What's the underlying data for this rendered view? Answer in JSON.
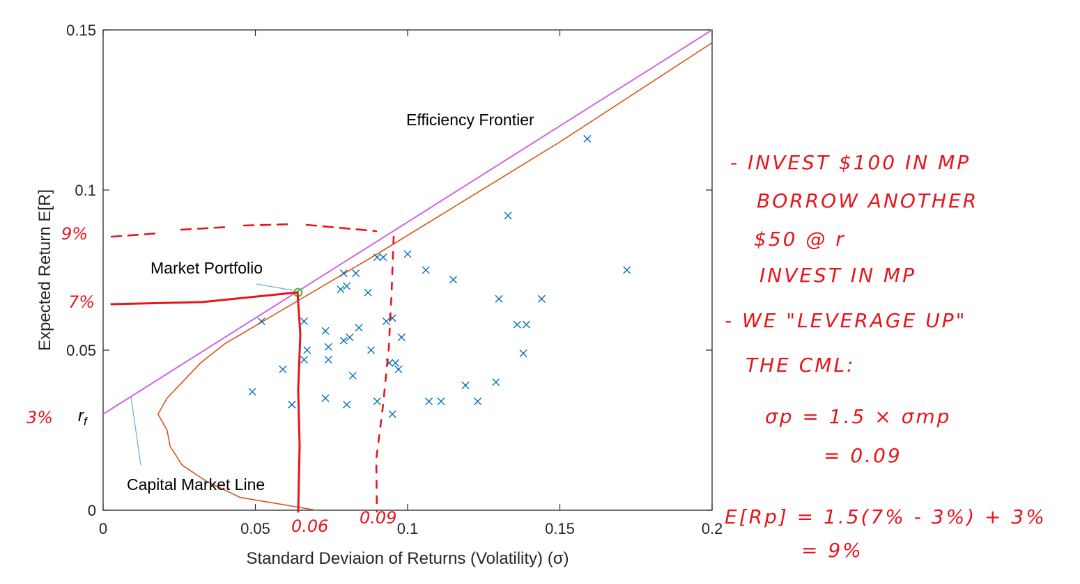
{
  "chart_data": {
    "type": "scatter",
    "xlabel": "Standard Deviaion of Returns (Volatility) (σ)",
    "ylabel": "Expected Return E[R]",
    "xlim": [
      0,
      0.2
    ],
    "ylim": [
      0,
      0.15
    ],
    "xticks": [
      "0",
      "0.05",
      "0.1",
      "0.15",
      "0.2"
    ],
    "yticks": [
      "0",
      "0.05",
      "0.1",
      "0.15"
    ],
    "grid": false,
    "colors": {
      "assets": "#0072bd",
      "cml": "#cc66e6",
      "frontier": "#d95319",
      "market": "#33cc33",
      "ink": "#e8141b"
    },
    "assets": [
      [
        0.049,
        0.037
      ],
      [
        0.052,
        0.059
      ],
      [
        0.059,
        0.044
      ],
      [
        0.062,
        0.033
      ],
      [
        0.062,
        0.033
      ],
      [
        0.066,
        0.059
      ],
      [
        0.067,
        0.05
      ],
      [
        0.066,
        0.047
      ],
      [
        0.073,
        0.056
      ],
      [
        0.074,
        0.051
      ],
      [
        0.074,
        0.047
      ],
      [
        0.073,
        0.035
      ],
      [
        0.078,
        0.069
      ],
      [
        0.079,
        0.074
      ],
      [
        0.08,
        0.07
      ],
      [
        0.083,
        0.074
      ],
      [
        0.08,
        0.033
      ],
      [
        0.079,
        0.053
      ],
      [
        0.081,
        0.054
      ],
      [
        0.082,
        0.042
      ],
      [
        0.084,
        0.057
      ],
      [
        0.087,
        0.068
      ],
      [
        0.088,
        0.05
      ],
      [
        0.09,
        0.079
      ],
      [
        0.092,
        0.079
      ],
      [
        0.093,
        0.059
      ],
      [
        0.095,
        0.06
      ],
      [
        0.094,
        0.046
      ],
      [
        0.096,
        0.046
      ],
      [
        0.098,
        0.054
      ],
      [
        0.097,
        0.044
      ],
      [
        0.09,
        0.034
      ],
      [
        0.095,
        0.03
      ],
      [
        0.1,
        0.08
      ],
      [
        0.106,
        0.075
      ],
      [
        0.107,
        0.034
      ],
      [
        0.111,
        0.034
      ],
      [
        0.115,
        0.072
      ],
      [
        0.119,
        0.039
      ],
      [
        0.123,
        0.034
      ],
      [
        0.13,
        0.066
      ],
      [
        0.129,
        0.04
      ],
      [
        0.133,
        0.092
      ],
      [
        0.136,
        0.058
      ],
      [
        0.139,
        0.058
      ],
      [
        0.138,
        0.049
      ],
      [
        0.144,
        0.066
      ],
      [
        0.159,
        0.116
      ],
      [
        0.172,
        0.075
      ]
    ],
    "series": [
      {
        "name": "Capital Market Line",
        "x": [
          0,
          0.2
        ],
        "y": [
          0.03,
          0.15
        ]
      },
      {
        "name": "Efficiency Frontier",
        "x": [
          0.07,
          0.045,
          0.034,
          0.026,
          0.022,
          0.021,
          0.018,
          0.021,
          0.027,
          0.032,
          0.04,
          0.09,
          0.15,
          0.2
        ],
        "y": [
          0,
          0.004,
          0.009,
          0.014,
          0.02,
          0.025,
          0.03,
          0.035,
          0.041,
          0.046,
          0.052,
          0.08,
          0.115,
          0.146
        ]
      }
    ],
    "market_portfolio": {
      "x": 0.064,
      "y": 0.068
    },
    "labels": {
      "efficiency_frontier": "Efficiency Frontier",
      "market_portfolio": "Market Portfolio",
      "capital_market_line": "Capital Market Line",
      "rf": "r",
      "rf_sub": "f"
    },
    "handwriting": {
      "y_marks": [
        "9%",
        "7%",
        "3%"
      ],
      "x_marks": [
        "0.06",
        "0.09"
      ],
      "notes": [
        "- INVEST $100 IN MP",
        "BORROW ANOTHER",
        "$50 @ r",
        "INVEST IN MP",
        "- WE \"LEVERAGE UP\"",
        "THE CML:",
        "σp = 1.5 × σmp",
        "= 0.09",
        "E[Rp] = 1.5(7% - 3%) + 3%",
        "= 9%"
      ]
    }
  }
}
